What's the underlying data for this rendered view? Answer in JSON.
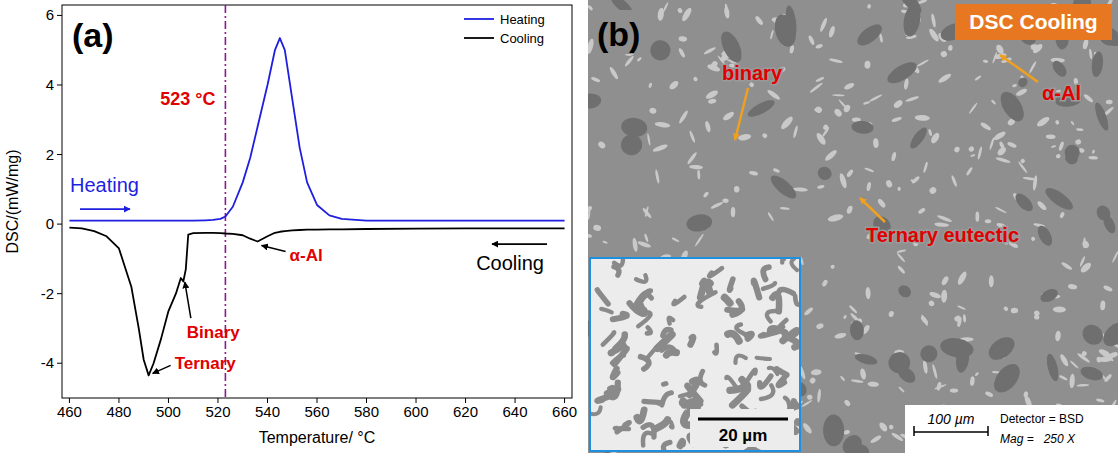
{
  "chart_data": {
    "type": "line",
    "panel_label": "(a)",
    "x_label": "Temperature/ °C",
    "y_label": "DSC/(mW/mg)",
    "xlim": [
      457,
      663
    ],
    "ylim": [
      -5,
      6.3
    ],
    "xticks": [
      460,
      480,
      500,
      520,
      540,
      560,
      580,
      600,
      620,
      640,
      660
    ],
    "yticks": [
      -4,
      -2,
      0,
      2,
      4,
      6
    ],
    "legend": "upper right",
    "x": [
      460,
      465,
      470,
      475,
      480,
      485,
      488,
      490,
      492,
      494,
      497,
      500,
      503,
      505,
      506,
      507,
      508,
      510,
      515,
      518,
      521,
      523,
      526,
      530,
      533,
      536,
      540,
      543,
      545,
      547,
      550,
      553,
      556,
      560,
      565,
      570,
      580,
      600,
      620,
      640,
      660
    ],
    "series": [
      {
        "name": "Heating",
        "color": "#1f1fe0",
        "values": [
          0.1,
          0.1,
          0.1,
          0.1,
          0.1,
          0.1,
          0.1,
          0.1,
          0.1,
          0.1,
          0.1,
          0.1,
          0.1,
          0.1,
          0.1,
          0.1,
          0.1,
          0.1,
          0.11,
          0.12,
          0.15,
          0.22,
          0.5,
          1.2,
          1.9,
          2.8,
          4.0,
          5.0,
          5.35,
          5.0,
          3.6,
          2.2,
          1.2,
          0.55,
          0.25,
          0.15,
          0.1,
          0.1,
          0.1,
          0.1,
          0.1
        ]
      },
      {
        "name": "Cooling",
        "color": "#000000",
        "values": [
          -0.1,
          -0.12,
          -0.2,
          -0.35,
          -0.7,
          -1.8,
          -3.0,
          -3.9,
          -4.35,
          -4.0,
          -3.3,
          -2.5,
          -2.0,
          -1.55,
          -1.65,
          -1.3,
          -0.3,
          -0.26,
          -0.25,
          -0.25,
          -0.26,
          -0.27,
          -0.28,
          -0.32,
          -0.42,
          -0.5,
          -0.35,
          -0.25,
          -0.22,
          -0.2,
          -0.18,
          -0.17,
          -0.16,
          -0.16,
          -0.15,
          -0.15,
          -0.14,
          -0.13,
          -0.12,
          -0.12,
          -0.12
        ]
      }
    ],
    "reference_line": {
      "value": 523,
      "label": "523 °C",
      "color": "#8b1a8b"
    },
    "annotations": [
      {
        "text": "Heating"
      },
      {
        "text": "Cooling"
      },
      {
        "text": "α-Al"
      },
      {
        "text": "Binary"
      },
      {
        "text": "Ternary"
      }
    ]
  },
  "micrograph": {
    "label": "(b)",
    "title": "DSC Cooling",
    "annotations": [
      {
        "text": "binary"
      },
      {
        "text": "α-Al"
      },
      {
        "text": "Ternary eutectic"
      }
    ],
    "inset_scale_bar": "20 µm",
    "scale_bar": "100 µm",
    "detector": "Detector = BSD",
    "magnification": "Mag =   250 X"
  }
}
